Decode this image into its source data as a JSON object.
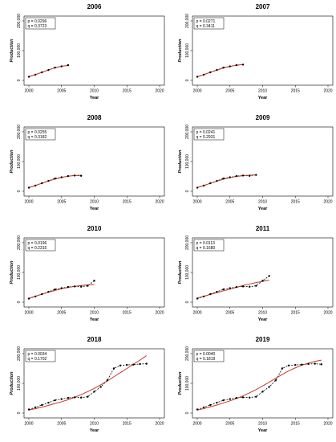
{
  "chart_data": [
    {
      "type": "line",
      "title": "2006",
      "xlabel": "Year",
      "ylabel": "Production",
      "xlim": [
        2000,
        2020
      ],
      "ylim": [
        0,
        200000
      ],
      "x_ticks": [
        "2000",
        "2005",
        "2010",
        "2015",
        "2020"
      ],
      "y_ticks": [
        "0",
        "100,000",
        "200,000"
      ],
      "legend": [
        "p = 0.0296",
        "q = 0.3723"
      ],
      "series": [
        {
          "x": [
            2000,
            2001,
            2002,
            2003,
            2004,
            2005,
            2006
          ],
          "values": [
            12000,
            19000,
            27000,
            35000,
            43000,
            47000,
            51000
          ],
          "style": "observed"
        },
        {
          "x": [
            2000,
            2001,
            2002,
            2003,
            2004,
            2005,
            2006
          ],
          "values": [
            12500,
            19500,
            27000,
            35000,
            42000,
            47500,
            50000
          ],
          "style": "fitted"
        }
      ]
    },
    {
      "type": "line",
      "title": "2007",
      "xlabel": "Year",
      "ylabel": "Production",
      "xlim": [
        2000,
        2020
      ],
      "ylim": [
        0,
        200000
      ],
      "x_ticks": [
        "2000",
        "2005",
        "2010",
        "2015",
        "2020"
      ],
      "y_ticks": [
        "0",
        "100,000",
        "200,000"
      ],
      "legend": [
        "p = 0.0271",
        "q = 0.3411"
      ],
      "series": [
        {
          "x": [
            2000,
            2001,
            2002,
            2003,
            2004,
            2005,
            2006,
            2007
          ],
          "values": [
            12000,
            19000,
            27000,
            35000,
            43000,
            47000,
            51000,
            53000
          ],
          "style": "observed"
        },
        {
          "x": [
            2000,
            2001,
            2002,
            2003,
            2004,
            2005,
            2006,
            2007
          ],
          "values": [
            12500,
            19500,
            27000,
            34500,
            41500,
            47000,
            51000,
            53500
          ],
          "style": "fitted"
        }
      ]
    },
    {
      "type": "line",
      "title": "2008",
      "xlabel": "Year",
      "ylabel": "Production",
      "xlim": [
        2000,
        2020
      ],
      "ylim": [
        0,
        200000
      ],
      "x_ticks": [
        "2000",
        "2005",
        "2010",
        "2015",
        "2020"
      ],
      "y_ticks": [
        "0",
        "100,000",
        "200,000"
      ],
      "legend": [
        "p = 0.0255",
        "q = 0.3182"
      ],
      "series": [
        {
          "x": [
            2000,
            2001,
            2002,
            2003,
            2004,
            2005,
            2006,
            2007,
            2008
          ],
          "values": [
            12000,
            19000,
            27000,
            35000,
            43000,
            47000,
            51000,
            53000,
            52000
          ],
          "style": "observed"
        },
        {
          "x": [
            2000,
            2001,
            2002,
            2003,
            2004,
            2005,
            2006,
            2007,
            2008
          ],
          "values": [
            12500,
            19500,
            27000,
            34500,
            41000,
            46500,
            50500,
            53000,
            54000
          ],
          "style": "fitted"
        }
      ]
    },
    {
      "type": "line",
      "title": "2009",
      "xlabel": "Year",
      "ylabel": "Production",
      "xlim": [
        2000,
        2020
      ],
      "ylim": [
        0,
        200000
      ],
      "x_ticks": [
        "2000",
        "2005",
        "2010",
        "2015",
        "2020"
      ],
      "y_ticks": [
        "0",
        "100,000",
        "200,000"
      ],
      "legend": [
        "p = 0.0241",
        "q = 0.2931"
      ],
      "series": [
        {
          "x": [
            2000,
            2001,
            2002,
            2003,
            2004,
            2005,
            2006,
            2007,
            2008,
            2009
          ],
          "values": [
            12000,
            19000,
            27000,
            35000,
            43000,
            47000,
            51000,
            53000,
            52000,
            55000
          ],
          "style": "observed"
        },
        {
          "x": [
            2000,
            2001,
            2002,
            2003,
            2004,
            2005,
            2006,
            2007,
            2008,
            2009
          ],
          "values": [
            12500,
            19500,
            26500,
            34000,
            40500,
            46000,
            50000,
            52500,
            54000,
            55000
          ],
          "style": "fitted"
        }
      ]
    },
    {
      "type": "line",
      "title": "2010",
      "xlabel": "Year",
      "ylabel": "Production",
      "xlim": [
        2000,
        2020
      ],
      "ylim": [
        0,
        200000
      ],
      "x_ticks": [
        "2000",
        "2005",
        "2010",
        "2015",
        "2020"
      ],
      "y_ticks": [
        "0",
        "100,000",
        "200,000"
      ],
      "legend": [
        "p = 0.0196",
        "q = 0.2315"
      ],
      "series": [
        {
          "x": [
            2000,
            2001,
            2002,
            2003,
            2004,
            2005,
            2006,
            2007,
            2008,
            2009,
            2010
          ],
          "values": [
            12000,
            19000,
            27000,
            35000,
            43000,
            47000,
            51000,
            53000,
            52000,
            55000,
            72000
          ],
          "style": "observed"
        },
        {
          "x": [
            2000,
            2001,
            2002,
            2003,
            2004,
            2005,
            2006,
            2007,
            2008,
            2009,
            2010
          ],
          "values": [
            13000,
            20000,
            27000,
            33500,
            39500,
            45000,
            49500,
            53000,
            56000,
            58000,
            59500
          ],
          "style": "fitted"
        }
      ]
    },
    {
      "type": "line",
      "title": "2011",
      "xlabel": "Year",
      "ylabel": "Production",
      "xlim": [
        2000,
        2020
      ],
      "ylim": [
        0,
        200000
      ],
      "x_ticks": [
        "2000",
        "2005",
        "2010",
        "2015",
        "2020"
      ],
      "y_ticks": [
        "0",
        "100,000",
        "200,000"
      ],
      "legend": [
        "p = 0.0113",
        "q = 0.1680"
      ],
      "series": [
        {
          "x": [
            2000,
            2001,
            2002,
            2003,
            2004,
            2005,
            2006,
            2007,
            2008,
            2009,
            2010,
            2011
          ],
          "values": [
            12000,
            19000,
            27000,
            35000,
            43000,
            47000,
            51000,
            53000,
            52000,
            55000,
            72000,
            88000
          ],
          "style": "observed"
        },
        {
          "x": [
            2000,
            2001,
            2002,
            2003,
            2004,
            2005,
            2006,
            2007,
            2008,
            2009,
            2010,
            2011
          ],
          "values": [
            14000,
            20000,
            26000,
            32000,
            38000,
            44000,
            50000,
            56000,
            61000,
            66000,
            70000,
            74000
          ],
          "style": "fitted"
        }
      ]
    },
    {
      "type": "line",
      "title": "2018",
      "xlabel": "Year",
      "ylabel": "Production",
      "xlim": [
        2000,
        2020
      ],
      "ylim": [
        0,
        200000
      ],
      "x_ticks": [
        "2000",
        "2005",
        "2010",
        "2015",
        "2020"
      ],
      "y_ticks": [
        "0",
        "100,000",
        "200,000"
      ],
      "legend": [
        "p = 0.0034",
        "q = 0.1702"
      ],
      "series": [
        {
          "x": [
            2000,
            2001,
            2002,
            2003,
            2004,
            2005,
            2006,
            2007,
            2008,
            2009,
            2010,
            2011,
            2012,
            2013,
            2014,
            2015,
            2016,
            2017,
            2018
          ],
          "values": [
            12000,
            19000,
            27000,
            35000,
            43000,
            47000,
            51000,
            53000,
            52000,
            55000,
            72000,
            88000,
            110000,
            150000,
            160000,
            162000,
            163000,
            165000,
            166000
          ],
          "style": "observed"
        },
        {
          "x": [
            2000,
            2001,
            2002,
            2003,
            2004,
            2005,
            2006,
            2007,
            2008,
            2009,
            2010,
            2011,
            2012,
            2013,
            2014,
            2015,
            2016,
            2017,
            2018
          ],
          "values": [
            10000,
            15000,
            20000,
            26000,
            32000,
            38000,
            45000,
            53000,
            62000,
            72000,
            83000,
            95000,
            108000,
            122000,
            136000,
            150000,
            164000,
            178000,
            193000
          ],
          "style": "fitted"
        }
      ]
    },
    {
      "type": "line",
      "title": "2019",
      "xlabel": "Year",
      "ylabel": "Production",
      "xlim": [
        2000,
        2020
      ],
      "ylim": [
        0,
        200000
      ],
      "x_ticks": [
        "2000",
        "2005",
        "2010",
        "2015",
        "2020"
      ],
      "y_ticks": [
        "0",
        "100,000",
        "200,000"
      ],
      "legend": [
        "p = 0.0040",
        "q = 0.1819"
      ],
      "series": [
        {
          "x": [
            2000,
            2001,
            2002,
            2003,
            2004,
            2005,
            2006,
            2007,
            2008,
            2009,
            2010,
            2011,
            2012,
            2013,
            2014,
            2015,
            2016,
            2017,
            2018,
            2019
          ],
          "values": [
            12000,
            19000,
            27000,
            35000,
            43000,
            47000,
            51000,
            53000,
            52000,
            55000,
            72000,
            88000,
            110000,
            150000,
            160000,
            162000,
            163000,
            165000,
            166000,
            164000
          ],
          "style": "observed"
        },
        {
          "x": [
            2000,
            2001,
            2002,
            2003,
            2004,
            2005,
            2006,
            2007,
            2008,
            2009,
            2010,
            2011,
            2012,
            2013,
            2014,
            2015,
            2016,
            2017,
            2018,
            2019
          ],
          "values": [
            10000,
            15000,
            21000,
            27000,
            34000,
            41000,
            49000,
            58000,
            68000,
            79000,
            91000,
            104000,
            117000,
            130000,
            142000,
            152000,
            161000,
            168000,
            174000,
            178000
          ],
          "style": "fitted"
        }
      ]
    }
  ]
}
